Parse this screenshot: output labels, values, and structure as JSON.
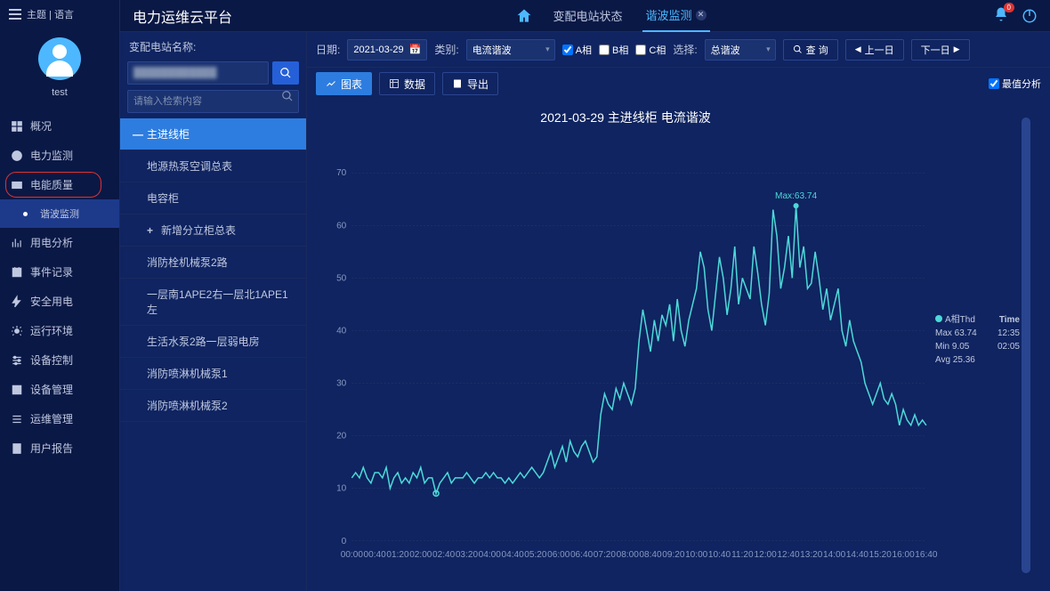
{
  "header": {
    "theme_lang": "主题 | 语言",
    "app_title": "电力运维云平台",
    "tabs": [
      {
        "label": "变配电站状态",
        "active": false
      },
      {
        "label": "谐波监测",
        "active": true
      }
    ],
    "badge_count": "0"
  },
  "user": {
    "name": "test"
  },
  "sidebar": {
    "items": [
      {
        "icon": "overview",
        "label": "概况"
      },
      {
        "icon": "monitor",
        "label": "电力监测"
      },
      {
        "icon": "quality",
        "label": "电能质量",
        "highlighted": true
      },
      {
        "icon": "sub",
        "label": "谐波监测",
        "sub": true,
        "active": true
      },
      {
        "icon": "analysis",
        "label": "用电分析"
      },
      {
        "icon": "event",
        "label": "事件记录"
      },
      {
        "icon": "safety",
        "label": "安全用电"
      },
      {
        "icon": "env",
        "label": "运行环境"
      },
      {
        "icon": "control",
        "label": "设备控制"
      },
      {
        "icon": "device",
        "label": "设备管理"
      },
      {
        "icon": "ops",
        "label": "运维管理"
      },
      {
        "icon": "report",
        "label": "用户报告"
      }
    ]
  },
  "device_panel": {
    "label": "变配电站名称:",
    "station_blur": "████████████",
    "search_placeholder": "请输入检索内容",
    "tree": [
      {
        "label": "主进线柜",
        "selected": true,
        "prefix": "—"
      },
      {
        "label": "地源热泵空调总表",
        "child": true
      },
      {
        "label": "电容柜",
        "child": true
      },
      {
        "label": "新增分立柜总表",
        "child": true,
        "prefix": "+"
      },
      {
        "label": "消防栓机械泵2路",
        "child2": true
      },
      {
        "label": "一层南1APE2右一层北1APE1左",
        "child2": true
      },
      {
        "label": "生活水泵2路一层弱电房",
        "child2": true
      },
      {
        "label": "消防喷淋机械泵1",
        "child2": true
      },
      {
        "label": "消防喷淋机械泵2",
        "child2": true
      }
    ]
  },
  "filters": {
    "date_label": "日期:",
    "date_value": "2021-03-29",
    "type_label": "类别:",
    "type_value": "电流谐波",
    "phase_a": "A相",
    "phase_b": "B相",
    "phase_c": "C相",
    "select_label": "选择:",
    "select_value": "总谐波",
    "query_btn": "查 询",
    "prev_btn": "上一日",
    "next_btn": "下一日"
  },
  "toolbar": {
    "chart_btn": "图表",
    "data_btn": "数据",
    "export_btn": "导出",
    "max_analysis": "最值分析"
  },
  "chart": {
    "title": "2021-03-29  主进线柜  电流谐波",
    "max_label": "Max:63.74",
    "line_color": "#4dd8d8",
    "bg_color": "#0f2460",
    "grid_color": "#2a3a6e",
    "axis_text_color": "#8898c0",
    "y_ticks": [
      0,
      10,
      20,
      30,
      40,
      50,
      60,
      70
    ],
    "x_labels": [
      "00:00",
      "00:40",
      "01:20",
      "02:00",
      "02:40",
      "03:20",
      "04:00",
      "04:40",
      "05:20",
      "06:00",
      "06:40",
      "07:20",
      "08:00",
      "08:40",
      "09:20",
      "10:00",
      "10:40",
      "11:20",
      "12:00",
      "12:40",
      "13:20",
      "14:00",
      "14:40",
      "15:20",
      "16:00",
      "16:40"
    ],
    "data": [
      12,
      13,
      12,
      14,
      12,
      11,
      13,
      13,
      12,
      14,
      10,
      12,
      13,
      11,
      12,
      11,
      13,
      12,
      14,
      11,
      12,
      12,
      9,
      11,
      12,
      13,
      11,
      12,
      12,
      12,
      13,
      12,
      11,
      12,
      12,
      13,
      12,
      13,
      12,
      12,
      11,
      12,
      11,
      12,
      13,
      12,
      13,
      14,
      13,
      12,
      13,
      15,
      17,
      14,
      16,
      18,
      15,
      19,
      17,
      16,
      18,
      19,
      17,
      15,
      16,
      24,
      28,
      26,
      25,
      29,
      27,
      30,
      28,
      26,
      29,
      38,
      44,
      40,
      36,
      42,
      38,
      43,
      41,
      45,
      38,
      46,
      40,
      37,
      42,
      45,
      48,
      55,
      52,
      44,
      40,
      47,
      54,
      50,
      43,
      48,
      56,
      45,
      50,
      48,
      46,
      56,
      51,
      45,
      41,
      47,
      63,
      58,
      48,
      52,
      58,
      50,
      63.74,
      52,
      56,
      48,
      49,
      55,
      50,
      44,
      48,
      42,
      45,
      48,
      40,
      37,
      42,
      38,
      36,
      34,
      30,
      28,
      26,
      28,
      30,
      27,
      26,
      28,
      26,
      22,
      25,
      23,
      22,
      24,
      22,
      23,
      22
    ],
    "min_point": {
      "index": 22,
      "value": 9.05
    }
  },
  "legend": {
    "series": "A相Thd",
    "time_header": "Time",
    "max_label": "Max 63.74",
    "max_time": "12:35",
    "min_label": "Min 9.05",
    "min_time": "02:05",
    "avg_label": "Avg 25.36"
  }
}
